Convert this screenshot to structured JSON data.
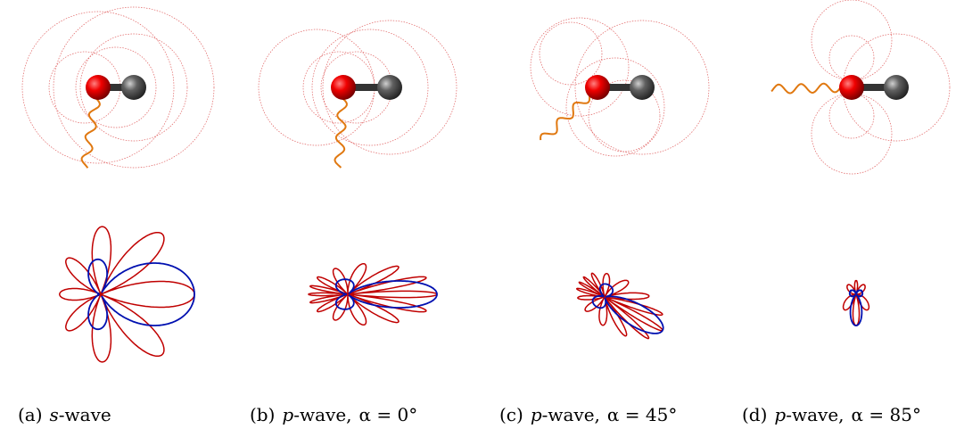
{
  "panels": [
    {
      "label": "(a)",
      "wave_letter": "s",
      "wave_suffix": "-wave"
    },
    {
      "label": "(b)",
      "wave_letter": "p",
      "wave_suffix": "-wave,",
      "angle": "α = 0°"
    },
    {
      "label": "(c)",
      "wave_letter": "p",
      "wave_suffix": "-wave,",
      "angle": "α = 45°"
    },
    {
      "label": "(d)",
      "wave_letter": "p",
      "wave_suffix": "-wave,",
      "angle": "α = 85°"
    }
  ]
}
